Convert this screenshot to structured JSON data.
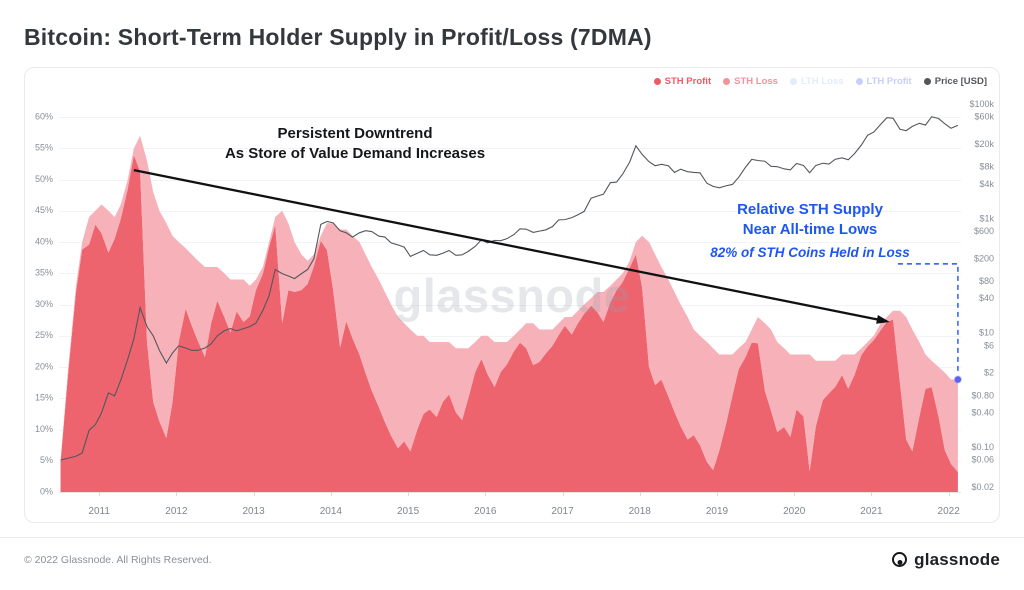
{
  "page": {
    "title": "Bitcoin: Short-Term Holder Supply in Profit/Loss (7DMA)",
    "watermark": "glassnode",
    "footer": {
      "copyright": "© 2022 Glassnode. All Rights Reserved.",
      "brand": "glassnode"
    }
  },
  "annotations_text": {
    "downtrend_line1": "Persistent Downtrend",
    "downtrend_line2": "As Store of Value Demand Increases",
    "sth_line1": "Relative STH Supply",
    "sth_line2": "Near All-time Lows",
    "sth_line3": "82% of STH Coins Held in Loss"
  },
  "chart_data": {
    "type": "area",
    "title": "Bitcoin: Short-Term Holder Supply in Profit/Loss (7DMA)",
    "legend": [
      {
        "label": "STH Profit",
        "color": "#ec5c67",
        "faded": false
      },
      {
        "label": "STH Loss",
        "color": "#f2939c",
        "faded": false
      },
      {
        "label": "LTH Loss",
        "color": "#bcd7f5",
        "faded": true
      },
      {
        "label": "LTH Profit",
        "color": "#8193f5",
        "faded": true
      },
      {
        "label": "Price [USD]",
        "color": "#53575c",
        "faded": false
      }
    ],
    "colors": {
      "sth_profit": "#ec5c67",
      "sth_loss": "#f6aeb4",
      "price": "#53575c",
      "annotation_blue": "#1d56f3",
      "arrow": "#101113",
      "end_marker": "#5865f2",
      "grid": "#f1f3f5"
    },
    "x_domain": [
      2010.48,
      2022.16
    ],
    "left_axis": {
      "unit": "%",
      "plot_max": 64,
      "tick_values": [
        0,
        5,
        10,
        15,
        20,
        25,
        30,
        35,
        40,
        45,
        50,
        55,
        60
      ],
      "tick_labels": [
        "0%",
        "5%",
        "10%",
        "15%",
        "20%",
        "25%",
        "30%",
        "35%",
        "40%",
        "45%",
        "50%",
        "55%",
        "60%"
      ]
    },
    "right_axis": {
      "scale": "log",
      "unit": "USD",
      "log_top": 5.22,
      "log_bottom": -1.78,
      "tick_values": [
        100000,
        60000,
        20000,
        8000,
        4000,
        1000,
        600,
        200,
        80,
        40,
        10,
        6,
        2,
        0.8,
        0.4,
        0.1,
        0.06,
        0.02
      ],
      "tick_labels": [
        "$100k",
        "$60k",
        "$20k",
        "$8k",
        "$4k",
        "$1k",
        "$600",
        "$200",
        "$80",
        "$40",
        "$10",
        "$6",
        "$2",
        "$0.80",
        "$0.40",
        "$0.10",
        "$0.06",
        "$0.02"
      ]
    },
    "x_ticks": {
      "values": [
        2011,
        2012,
        2013,
        2014,
        2015,
        2016,
        2017,
        2018,
        2019,
        2020,
        2021,
        2022
      ],
      "labels": [
        "2011",
        "2012",
        "2013",
        "2014",
        "2015",
        "2016",
        "2017",
        "2018",
        "2019",
        "2020",
        "2021",
        "2022"
      ]
    },
    "x": [
      2010.5,
      2010.6,
      2010.7,
      2010.78,
      2010.87,
      2010.95,
      2011.03,
      2011.12,
      2011.2,
      2011.28,
      2011.37,
      2011.45,
      2011.53,
      2011.62,
      2011.7,
      2011.78,
      2011.87,
      2011.95,
      2012.03,
      2012.12,
      2012.2,
      2012.28,
      2012.37,
      2012.45,
      2012.53,
      2012.62,
      2012.7,
      2012.78,
      2012.87,
      2012.95,
      2013.03,
      2013.12,
      2013.2,
      2013.28,
      2013.37,
      2013.45,
      2013.53,
      2013.62,
      2013.7,
      2013.78,
      2013.87,
      2013.95,
      2014.03,
      2014.12,
      2014.2,
      2014.28,
      2014.37,
      2014.45,
      2014.53,
      2014.62,
      2014.7,
      2014.78,
      2014.87,
      2014.95,
      2015.03,
      2015.12,
      2015.2,
      2015.28,
      2015.37,
      2015.45,
      2015.53,
      2015.62,
      2015.7,
      2015.78,
      2015.87,
      2015.95,
      2016.03,
      2016.12,
      2016.2,
      2016.28,
      2016.37,
      2016.45,
      2016.53,
      2016.62,
      2016.7,
      2016.78,
      2016.87,
      2016.95,
      2017.03,
      2017.12,
      2017.2,
      2017.28,
      2017.37,
      2017.45,
      2017.53,
      2017.62,
      2017.7,
      2017.78,
      2017.87,
      2017.95,
      2018.03,
      2018.12,
      2018.2,
      2018.28,
      2018.37,
      2018.45,
      2018.53,
      2018.62,
      2018.7,
      2018.78,
      2018.87,
      2018.95,
      2019.03,
      2019.12,
      2019.2,
      2019.28,
      2019.37,
      2019.45,
      2019.53,
      2019.62,
      2019.7,
      2019.78,
      2019.87,
      2019.95,
      2020.03,
      2020.12,
      2020.2,
      2020.28,
      2020.37,
      2020.45,
      2020.53,
      2020.62,
      2020.7,
      2020.78,
      2020.87,
      2020.95,
      2021.03,
      2021.12,
      2021.2,
      2021.28,
      2021.37,
      2021.45,
      2021.53,
      2021.62,
      2021.7,
      2021.78,
      2021.87,
      2021.95,
      2022.03,
      2022.12
    ],
    "series": [
      {
        "name": "STH Profit",
        "kind": "area",
        "axis": "left",
        "unit": "% of supply",
        "values": [
          4.8,
          19.2,
          32,
          38.8,
          39.6,
          42.8,
          41.4,
          38.3,
          40.5,
          43.7,
          48.5,
          53.9,
          51.3,
          23.9,
          14.4,
          11.3,
          8.6,
          14.4,
          24,
          29.3,
          26.6,
          24.1,
          21.6,
          27,
          30.6,
          28,
          25.5,
          28.9,
          27.2,
          28.1,
          32.3,
          34.9,
          39.2,
          42.7,
          27,
          32.3,
          32,
          32.3,
          33.3,
          36.1,
          40.2,
          38.7,
          32.3,
          23.1,
          27.3,
          24.6,
          22,
          19,
          16.2,
          13.6,
          11.2,
          9,
          7,
          8.1,
          6.5,
          10,
          12.5,
          13.2,
          12,
          14.4,
          15.6,
          12.7,
          11.5,
          15,
          19.2,
          21.3,
          18.8,
          16.8,
          19.2,
          20.4,
          22.5,
          23.9,
          23,
          20.3,
          20.8,
          22.1,
          23.4,
          25.1,
          26.6,
          25.2,
          27,
          28.5,
          29.8,
          28.8,
          27.2,
          30.4,
          32.3,
          33.6,
          35.9,
          38,
          32.8,
          20,
          17.1,
          18,
          15.3,
          12.8,
          10.5,
          8.4,
          9.1,
          7.5,
          4.8,
          3.5,
          6.6,
          11,
          15.4,
          19.6,
          21.6,
          23.9,
          23.8,
          16.2,
          13,
          9.6,
          10.4,
          8.8,
          13.2,
          12.1,
          3.3,
          10.5,
          14.7,
          15.8,
          16.8,
          18.7,
          16.5,
          18.7,
          21.9,
          23.3,
          24.3,
          25.9,
          27.2,
          27.6,
          17.4,
          8.4,
          6.5,
          12,
          16.5,
          16.8,
          12,
          6.7,
          4.5,
          3.2
        ]
      },
      {
        "name": "STH Loss",
        "kind": "area-stacked",
        "axis": "left",
        "unit": "% of supply",
        "values": [
          0.2,
          0.8,
          1,
          1.2,
          4.4,
          2.2,
          4.6,
          6.7,
          3.5,
          2.3,
          1.5,
          1.1,
          5.7,
          29.1,
          33.6,
          33.7,
          34.4,
          26.6,
          16,
          9.7,
          11.4,
          12.9,
          14.4,
          9,
          5.4,
          7,
          8.5,
          5.1,
          6.8,
          4.9,
          1.7,
          1.1,
          0.8,
          1.3,
          18,
          10.7,
          8,
          5.7,
          3.7,
          1.9,
          0.8,
          4.3,
          10.7,
          18.9,
          14.7,
          16.4,
          18,
          19,
          19.8,
          20.4,
          20.8,
          21,
          21,
          18.9,
          19.5,
          15,
          12.5,
          10.8,
          12,
          9.6,
          8.4,
          10.3,
          11.5,
          8,
          4.8,
          3.7,
          6.2,
          7.2,
          4.8,
          3.6,
          2.5,
          2.1,
          4,
          6.7,
          5.2,
          3.9,
          2.6,
          1.9,
          1.4,
          2.8,
          2,
          1.5,
          1.2,
          3.2,
          4.8,
          2.6,
          1.7,
          1.4,
          1.1,
          2,
          8.2,
          20,
          20.9,
          18,
          18.7,
          19.2,
          19.5,
          19.6,
          16.9,
          17.5,
          19.2,
          19.5,
          15.4,
          11,
          6.6,
          3.4,
          2.4,
          2.1,
          4.2,
          10.8,
          13,
          14.4,
          12.6,
          13.2,
          8.8,
          9.9,
          18.7,
          10.5,
          6.3,
          5.2,
          4.2,
          3.3,
          5.5,
          3.3,
          1.1,
          0.7,
          0.7,
          1.1,
          0.8,
          1.4,
          11.6,
          19.6,
          19.5,
          12,
          5.5,
          4.2,
          8,
          12.4,
          13.5,
          14.8
        ]
      },
      {
        "name": "Price [USD]",
        "kind": "line",
        "axis": "right",
        "unit": "USD",
        "values": [
          0.06,
          0.065,
          0.07,
          0.08,
          0.2,
          0.25,
          0.4,
          0.9,
          0.8,
          1.5,
          3.5,
          8,
          28,
          13,
          9,
          5,
          3,
          4.5,
          6,
          5.5,
          5,
          5,
          5.5,
          6.5,
          9,
          11,
          12,
          11,
          12,
          13,
          15,
          25,
          45,
          130,
          110,
          100,
          90,
          110,
          130,
          200,
          800,
          900,
          850,
          620,
          570,
          480,
          570,
          620,
          600,
          500,
          480,
          380,
          350,
          320,
          220,
          250,
          280,
          235,
          230,
          250,
          280,
          230,
          235,
          270,
          330,
          430,
          380,
          420,
          415,
          450,
          530,
          670,
          660,
          580,
          610,
          640,
          730,
          960,
          970,
          1050,
          1180,
          1350,
          2300,
          2500,
          2700,
          4300,
          4400,
          6100,
          9900,
          19000,
          13500,
          10000,
          8500,
          9000,
          8500,
          6500,
          7400,
          6700,
          6500,
          6400,
          4200,
          3700,
          3500,
          3800,
          4000,
          5300,
          8000,
          11000,
          10500,
          10200,
          8300,
          8200,
          7500,
          7200,
          9300,
          8600,
          6400,
          8600,
          9400,
          9100,
          11000,
          11700,
          10800,
          13800,
          19600,
          29000,
          33000,
          45000,
          58800,
          57800,
          37000,
          35000,
          41500,
          47000,
          43800,
          61300,
          57000,
          46200,
          38500,
          43200
        ]
      }
    ],
    "annotations": {
      "arrow": {
        "from_x": 2011.45,
        "from_pct": 51.5,
        "to_x": 2021.2,
        "to_pct": 27.3
      },
      "bracket": {
        "pct_top": 36.5,
        "pct_bottom": 19.3,
        "end_marker_pct": 18
      }
    }
  }
}
